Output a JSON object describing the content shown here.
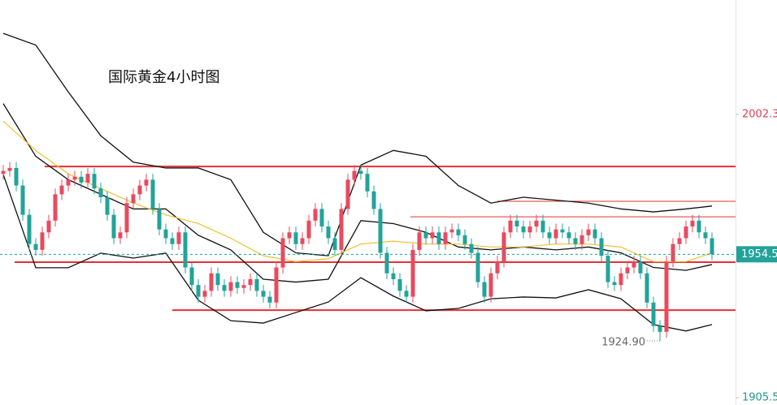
{
  "chart_data": {
    "type": "candlestick",
    "title": "国际黄金4小时图",
    "up_color": "#e84a5f",
    "down_color": "#22a39a",
    "ylim": [
      1903,
      2041.4
    ],
    "yticks": [
      2002.3,
      1905.5
    ],
    "open": [
      1982,
      1983,
      1984,
      1978,
      1968,
      1958,
      1956,
      1962,
      1966,
      1975,
      1978,
      1980,
      1981,
      1979,
      1982,
      1977,
      1974,
      1968,
      1960,
      1962,
      1972,
      1975,
      1978,
      1980,
      1970,
      1963,
      1960,
      1958,
      1962,
      1950,
      1944,
      1940,
      1942,
      1948,
      1944,
      1942,
      1945,
      1943,
      1944,
      1946,
      1942,
      1940,
      1938,
      1950,
      1960,
      1962,
      1958,
      1960,
      1966,
      1970,
      1964,
      1960,
      1956,
      1970,
      1980,
      1983,
      1982,
      1976,
      1970,
      1955,
      1948,
      1946,
      1942,
      1940,
      1956,
      1962,
      1960,
      1962,
      1958,
      1962,
      1963,
      1961,
      1958,
      1955,
      1945,
      1940,
      1948,
      1952,
      1962,
      1966,
      1964,
      1962,
      1964,
      1966,
      1962,
      1960,
      1963,
      1962,
      1960,
      1958,
      1961,
      1963,
      1960,
      1954,
      1945,
      1944,
      1948,
      1950,
      1952,
      1948,
      1938,
      1930,
      1928,
      1952,
      1958,
      1960,
      1964,
      1966,
      1962,
      1960
    ],
    "high": [
      1985,
      1986,
      1986,
      1980,
      1970,
      1960,
      1964,
      1968,
      1977,
      1980,
      1982,
      1983,
      1983,
      1984,
      1984,
      1979,
      1976,
      1970,
      1964,
      1974,
      1977,
      1980,
      1982,
      1982,
      1972,
      1965,
      1962,
      1964,
      1964,
      1952,
      1946,
      1944,
      1950,
      1950,
      1946,
      1947,
      1947,
      1946,
      1948,
      1948,
      1944,
      1942,
      1952,
      1962,
      1964,
      1964,
      1962,
      1968,
      1972,
      1972,
      1966,
      1962,
      1972,
      1982,
      1985,
      1985,
      1984,
      1978,
      1972,
      1957,
      1950,
      1948,
      1944,
      1958,
      1964,
      1964,
      1964,
      1964,
      1964,
      1965,
      1965,
      1963,
      1960,
      1957,
      1947,
      1950,
      1954,
      1964,
      1968,
      1968,
      1966,
      1966,
      1968,
      1968,
      1964,
      1965,
      1965,
      1964,
      1962,
      1963,
      1965,
      1965,
      1962,
      1956,
      1947,
      1950,
      1952,
      1954,
      1954,
      1950,
      1940,
      1932,
      1954,
      1960,
      1962,
      1966,
      1968,
      1968,
      1964,
      1962
    ],
    "low": [
      1980,
      1981,
      1976,
      1966,
      1956,
      1954,
      1954,
      1960,
      1964,
      1973,
      1976,
      1978,
      1977,
      1977,
      1975,
      1972,
      1966,
      1958,
      1958,
      1960,
      1970,
      1973,
      1976,
      1968,
      1961,
      1958,
      1956,
      1956,
      1948,
      1942,
      1938,
      1938,
      1940,
      1942,
      1940,
      1940,
      1941,
      1941,
      1942,
      1940,
      1938,
      1936,
      1936,
      1948,
      1958,
      1956,
      1956,
      1958,
      1964,
      1962,
      1958,
      1954,
      1954,
      1968,
      1978,
      1980,
      1974,
      1968,
      1953,
      1946,
      1944,
      1940,
      1938,
      1938,
      1954,
      1958,
      1958,
      1956,
      1956,
      1960,
      1959,
      1956,
      1953,
      1943,
      1938,
      1938,
      1946,
      1950,
      1960,
      1962,
      1960,
      1960,
      1962,
      1960,
      1958,
      1958,
      1960,
      1958,
      1956,
      1956,
      1959,
      1958,
      1952,
      1943,
      1942,
      1942,
      1946,
      1948,
      1946,
      1936,
      1928,
      1924.9,
      1926,
      1950,
      1956,
      1958,
      1962,
      1960,
      1958,
      1952.5
    ],
    "close": [
      1983,
      1984,
      1978,
      1968,
      1958,
      1956,
      1962,
      1966,
      1975,
      1978,
      1980,
      1981,
      1979,
      1982,
      1977,
      1974,
      1968,
      1960,
      1962,
      1972,
      1975,
      1978,
      1980,
      1970,
      1963,
      1960,
      1958,
      1962,
      1950,
      1944,
      1940,
      1942,
      1948,
      1944,
      1942,
      1945,
      1943,
      1944,
      1946,
      1942,
      1940,
      1938,
      1950,
      1960,
      1962,
      1958,
      1960,
      1966,
      1970,
      1964,
      1960,
      1956,
      1970,
      1980,
      1983,
      1982,
      1976,
      1970,
      1955,
      1948,
      1946,
      1942,
      1940,
      1956,
      1962,
      1960,
      1962,
      1958,
      1962,
      1963,
      1961,
      1958,
      1955,
      1945,
      1940,
      1948,
      1952,
      1962,
      1966,
      1964,
      1962,
      1964,
      1966,
      1962,
      1960,
      1963,
      1962,
      1960,
      1958,
      1961,
      1963,
      1960,
      1954,
      1945,
      1944,
      1948,
      1950,
      1952,
      1948,
      1938,
      1930,
      1928,
      1952,
      1958,
      1960,
      1964,
      1966,
      1962,
      1960,
      1954.5
    ],
    "overlay_x": [
      0,
      5,
      10,
      15,
      20,
      25,
      30,
      35,
      40,
      45,
      50,
      55,
      60,
      65,
      70,
      75,
      80,
      85,
      90,
      95,
      100,
      105,
      109
    ],
    "overlays": [
      {
        "color": "#111111",
        "values": [
          2030,
          2026,
          2010,
          1995,
          1986,
          1984,
          1984,
          1980,
          1962,
          1955,
          1954,
          1985,
          1990,
          1988,
          1978,
          1972,
          1974,
          1973,
          1972,
          1970,
          1969,
          1970,
          1971
        ]
      },
      {
        "color": "#111111",
        "values": [
          2006,
          1988,
          1980,
          1975,
          1970,
          1970,
          1961,
          1956,
          1946,
          1945,
          1946,
          1966,
          1965,
          1962,
          1957,
          1956,
          1957,
          1956,
          1957,
          1955,
          1950,
          1949,
          1951
        ]
      },
      {
        "color": "#111111",
        "values": [
          1981.8,
          1949.9,
          1949.9,
          1954.9,
          1953.2,
          1954.9,
          1938.8,
          1931.8,
          1931,
          1934.6,
          1938.2,
          1946.5,
          1940.2,
          1935.2,
          1936,
          1939.3,
          1939.9,
          1939.6,
          1942.4,
          1939.3,
          1930.5,
          1928.3,
          1930.5
        ]
      },
      {
        "color": "#f0c030",
        "values": [
          2000,
          1990,
          1982,
          1977,
          1972,
          1968,
          1965,
          1960,
          1954,
          1952,
          1953,
          1958,
          1959,
          1958,
          1958,
          1957,
          1957,
          1958,
          1958,
          1957,
          1952,
          1952,
          1955
        ]
      }
    ],
    "levels": [
      1984.5,
      1972.6,
      1967.3,
      1951.8,
      1935.4
    ],
    "level_color": "#e83030",
    "annotation": {
      "value": 1924.9,
      "label": "1924.90"
    }
  }
}
